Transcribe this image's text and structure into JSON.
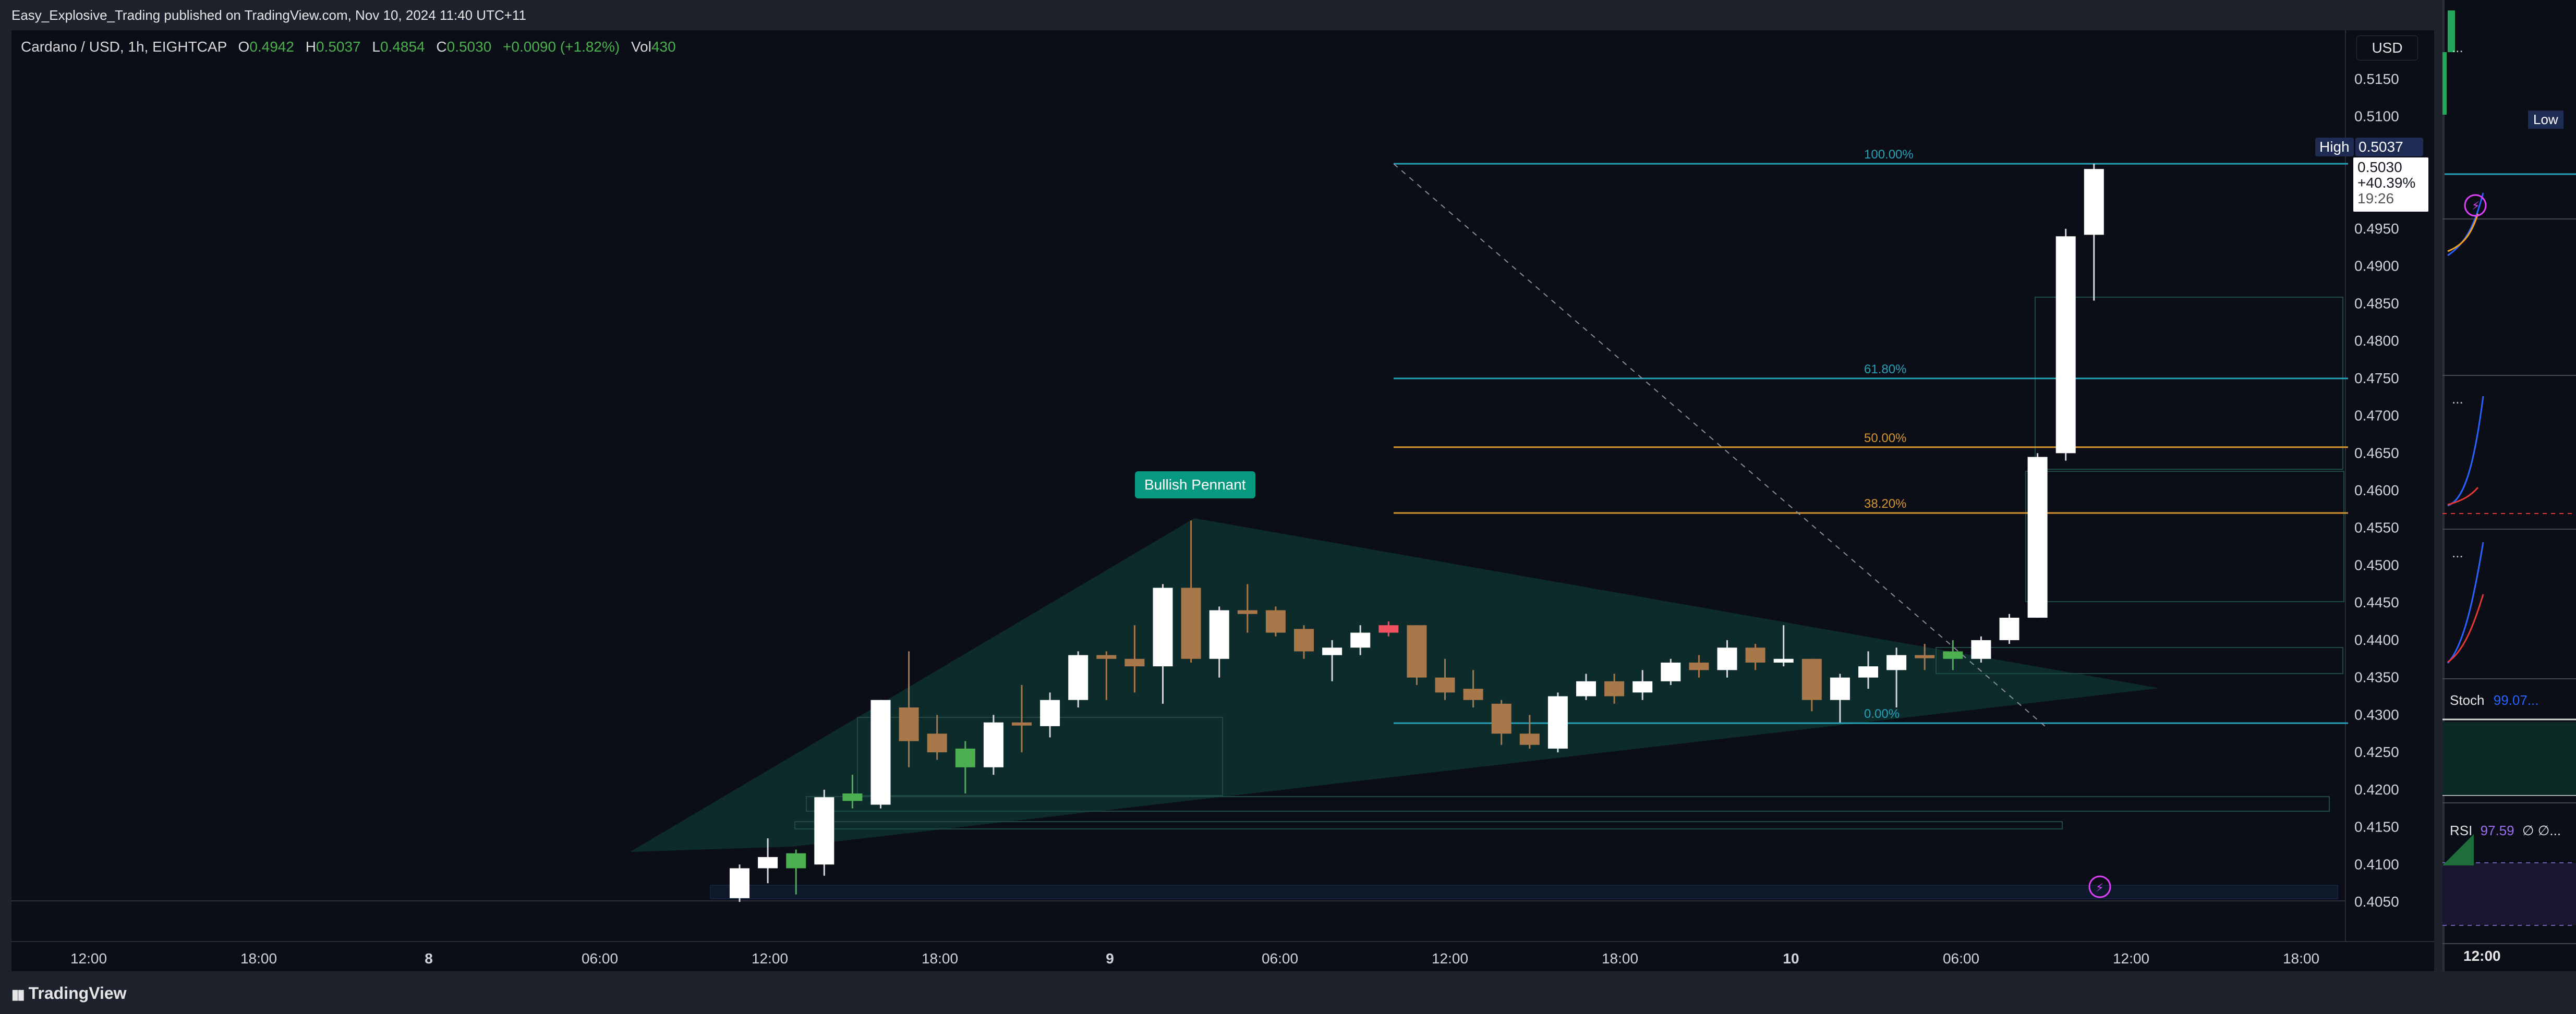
{
  "header": {
    "publisher_line": "Easy_Explosive_Trading published on TradingView.com, Nov 10, 2024 11:40 UTC+11"
  },
  "legend": {
    "symbol": "Cardano / USD, 1h, EIGHTCAP",
    "open_label": "O",
    "open": "0.4942",
    "high_label": "H",
    "high": "0.5037",
    "low_label": "L",
    "low": "0.4854",
    "close_label": "C",
    "close": "0.5030",
    "change": "+0.0090 (+1.82%)",
    "vol_label": "Vol",
    "vol": "430"
  },
  "currency_button": "USD",
  "price_axis": {
    "ticks": [
      "0.5150",
      "0.5100",
      "0.4950",
      "0.4900",
      "0.4850",
      "0.4800",
      "0.4750",
      "0.4700",
      "0.4650",
      "0.4600",
      "0.4550",
      "0.4500",
      "0.4450",
      "0.4400",
      "0.4350",
      "0.4300",
      "0.4250",
      "0.4200",
      "0.4150",
      "0.4100",
      "0.4050"
    ],
    "high_tag_label": "High",
    "high_tag_value": "0.5037",
    "current_price": "0.5030",
    "current_change": "+40.39%",
    "countdown": "19:26"
  },
  "time_axis": {
    "ticks": [
      "12:00",
      "18:00",
      "8",
      "06:00",
      "12:00",
      "18:00",
      "9",
      "06:00",
      "12:00",
      "18:00",
      "10",
      "06:00",
      "12:00",
      "18:00"
    ]
  },
  "annotation": {
    "pattern_label": "Bullish Pennant"
  },
  "fib_levels": [
    "100.00%",
    "61.80%",
    "50.00%",
    "38.20%",
    "0.00%"
  ],
  "side_panel": {
    "low_label": "Low",
    "stoch_label": "Stoch",
    "stoch_value": "99.07...",
    "rsi_label": "RSI",
    "rsi_value": "97.59",
    "rsi_extra": "∅ ∅...",
    "more_1": "...",
    "more_2": "...",
    "more_3": "...",
    "time_label": "12:00"
  },
  "footer": {
    "brand": "TradingView"
  },
  "colors": {
    "background": "#0b0e17",
    "bull_candle": "#ffffff",
    "bear_candle": "#a8774a",
    "green_candle": "#4caf50",
    "red_candle": "#f05262",
    "pennant_fill": "#0d2f2e",
    "pennant_label": "#089981",
    "fib_cyan": "#28a0b8",
    "fib_orange": "#d6952e"
  },
  "chart_data": {
    "type": "candlestick",
    "title": "Cardano / USD, 1h, EIGHTCAP",
    "xlabel": "",
    "ylabel": "",
    "ylim": [
      0.405,
      0.52
    ],
    "x_ticks": [
      "12:00",
      "18:00",
      "8",
      "06:00",
      "12:00",
      "18:00",
      "9",
      "06:00",
      "12:00",
      "18:00",
      "10",
      "06:00",
      "12:00",
      "18:00"
    ],
    "candles": [
      {
        "o": 0.4055,
        "h": 0.41,
        "l": 0.405,
        "c": 0.4095,
        "color": "white"
      },
      {
        "o": 0.4095,
        "h": 0.4135,
        "l": 0.4075,
        "c": 0.411,
        "color": "white"
      },
      {
        "o": 0.4095,
        "h": 0.412,
        "l": 0.406,
        "c": 0.4115,
        "color": "green"
      },
      {
        "o": 0.41,
        "h": 0.42,
        "l": 0.4085,
        "c": 0.419,
        "color": "white"
      },
      {
        "o": 0.4195,
        "h": 0.422,
        "l": 0.4175,
        "c": 0.4185,
        "color": "green"
      },
      {
        "o": 0.418,
        "h": 0.432,
        "l": 0.4175,
        "c": 0.432,
        "color": "white"
      },
      {
        "o": 0.431,
        "h": 0.4385,
        "l": 0.423,
        "c": 0.4265,
        "color": "tan"
      },
      {
        "o": 0.4275,
        "h": 0.43,
        "l": 0.424,
        "c": 0.425,
        "color": "tan"
      },
      {
        "o": 0.4255,
        "h": 0.4265,
        "l": 0.4195,
        "c": 0.423,
        "color": "green"
      },
      {
        "o": 0.423,
        "h": 0.43,
        "l": 0.422,
        "c": 0.429,
        "color": "white"
      },
      {
        "o": 0.429,
        "h": 0.434,
        "l": 0.425,
        "c": 0.429,
        "color": "tan"
      },
      {
        "o": 0.4285,
        "h": 0.433,
        "l": 0.427,
        "c": 0.432,
        "color": "white"
      },
      {
        "o": 0.432,
        "h": 0.4385,
        "l": 0.431,
        "c": 0.438,
        "color": "white"
      },
      {
        "o": 0.438,
        "h": 0.4385,
        "l": 0.432,
        "c": 0.4375,
        "color": "tan"
      },
      {
        "o": 0.4375,
        "h": 0.442,
        "l": 0.433,
        "c": 0.4365,
        "color": "tan"
      },
      {
        "o": 0.4365,
        "h": 0.4475,
        "l": 0.4315,
        "c": 0.447,
        "color": "white"
      },
      {
        "o": 0.447,
        "h": 0.456,
        "l": 0.437,
        "c": 0.4375,
        "color": "tan"
      },
      {
        "o": 0.4375,
        "h": 0.4445,
        "l": 0.435,
        "c": 0.444,
        "color": "white"
      },
      {
        "o": 0.444,
        "h": 0.4475,
        "l": 0.441,
        "c": 0.4435,
        "color": "tan"
      },
      {
        "o": 0.444,
        "h": 0.4445,
        "l": 0.4405,
        "c": 0.441,
        "color": "tan"
      },
      {
        "o": 0.4415,
        "h": 0.442,
        "l": 0.4375,
        "c": 0.4385,
        "color": "tan"
      },
      {
        "o": 0.438,
        "h": 0.44,
        "l": 0.4345,
        "c": 0.439,
        "color": "white"
      },
      {
        "o": 0.439,
        "h": 0.442,
        "l": 0.438,
        "c": 0.441,
        "color": "white"
      },
      {
        "o": 0.442,
        "h": 0.4425,
        "l": 0.4405,
        "c": 0.441,
        "color": "red"
      },
      {
        "o": 0.442,
        "h": 0.442,
        "l": 0.434,
        "c": 0.435,
        "color": "tan"
      },
      {
        "o": 0.435,
        "h": 0.4375,
        "l": 0.432,
        "c": 0.433,
        "color": "tan"
      },
      {
        "o": 0.4335,
        "h": 0.436,
        "l": 0.431,
        "c": 0.432,
        "color": "tan"
      },
      {
        "o": 0.4315,
        "h": 0.432,
        "l": 0.426,
        "c": 0.4275,
        "color": "tan"
      },
      {
        "o": 0.4275,
        "h": 0.43,
        "l": 0.4255,
        "c": 0.426,
        "color": "tan"
      },
      {
        "o": 0.4255,
        "h": 0.433,
        "l": 0.425,
        "c": 0.4325,
        "color": "white"
      },
      {
        "o": 0.4325,
        "h": 0.4355,
        "l": 0.432,
        "c": 0.4345,
        "color": "white"
      },
      {
        "o": 0.4345,
        "h": 0.4355,
        "l": 0.4315,
        "c": 0.4325,
        "color": "tan"
      },
      {
        "o": 0.433,
        "h": 0.436,
        "l": 0.432,
        "c": 0.4345,
        "color": "white"
      },
      {
        "o": 0.4345,
        "h": 0.4375,
        "l": 0.434,
        "c": 0.437,
        "color": "white"
      },
      {
        "o": 0.437,
        "h": 0.438,
        "l": 0.435,
        "c": 0.436,
        "color": "tan"
      },
      {
        "o": 0.436,
        "h": 0.44,
        "l": 0.435,
        "c": 0.439,
        "color": "white"
      },
      {
        "o": 0.439,
        "h": 0.4395,
        "l": 0.436,
        "c": 0.437,
        "color": "tan"
      },
      {
        "o": 0.437,
        "h": 0.442,
        "l": 0.4365,
        "c": 0.4375,
        "color": "white"
      },
      {
        "o": 0.4375,
        "h": 0.4375,
        "l": 0.4305,
        "c": 0.432,
        "color": "tan"
      },
      {
        "o": 0.432,
        "h": 0.4355,
        "l": 0.429,
        "c": 0.435,
        "color": "white"
      },
      {
        "o": 0.435,
        "h": 0.4385,
        "l": 0.4335,
        "c": 0.4365,
        "color": "white"
      },
      {
        "o": 0.436,
        "h": 0.439,
        "l": 0.431,
        "c": 0.438,
        "color": "white"
      },
      {
        "o": 0.438,
        "h": 0.4395,
        "l": 0.436,
        "c": 0.438,
        "color": "tan"
      },
      {
        "o": 0.4385,
        "h": 0.44,
        "l": 0.436,
        "c": 0.4375,
        "color": "green"
      },
      {
        "o": 0.4375,
        "h": 0.4405,
        "l": 0.437,
        "c": 0.44,
        "color": "white"
      },
      {
        "o": 0.44,
        "h": 0.4435,
        "l": 0.4395,
        "c": 0.443,
        "color": "white"
      },
      {
        "o": 0.443,
        "h": 0.465,
        "l": 0.443,
        "c": 0.4645,
        "color": "white"
      },
      {
        "o": 0.465,
        "h": 0.495,
        "l": 0.464,
        "c": 0.494,
        "color": "white"
      },
      {
        "o": 0.4942,
        "h": 0.5037,
        "l": 0.4854,
        "c": 0.503,
        "color": "white"
      }
    ]
  }
}
